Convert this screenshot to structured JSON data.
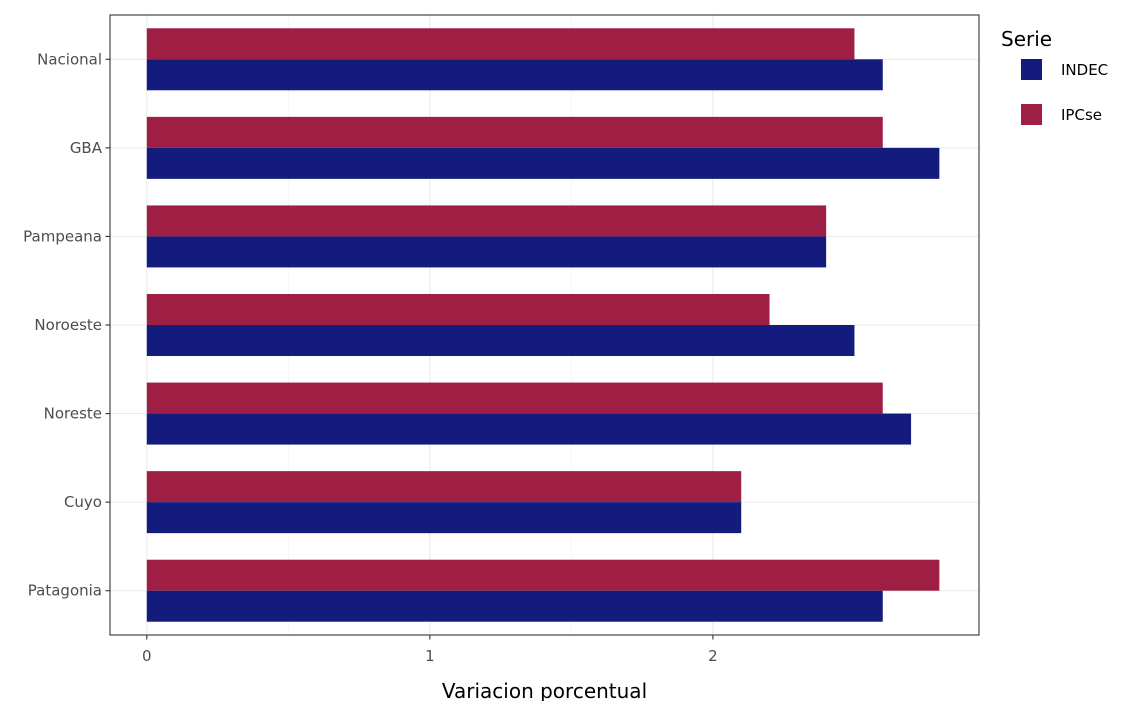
{
  "chart_data": {
    "type": "bar",
    "orientation": "horizontal",
    "categories": [
      "Nacional",
      "GBA",
      "Pampeana",
      "Noroeste",
      "Noreste",
      "Cuyo",
      "Patagonia"
    ],
    "series": [
      {
        "name": "INDEC",
        "color": "#131c7c",
        "values": [
          2.6,
          2.8,
          2.4,
          2.5,
          2.7,
          2.1,
          2.6
        ]
      },
      {
        "name": "IPCse",
        "color": "#9e1f43",
        "values": [
          2.5,
          2.6,
          2.4,
          2.2,
          2.6,
          2.1,
          2.8
        ]
      }
    ],
    "xlabel": "Variacion porcentual",
    "ylabel": "",
    "xlim": [
      -0.13,
      2.94
    ],
    "x_ticks": [
      0,
      1,
      2
    ],
    "x_tick_labels": [
      "0",
      "1",
      "2"
    ],
    "grid": true,
    "legend_title": "Serie",
    "legend_position": "right"
  }
}
